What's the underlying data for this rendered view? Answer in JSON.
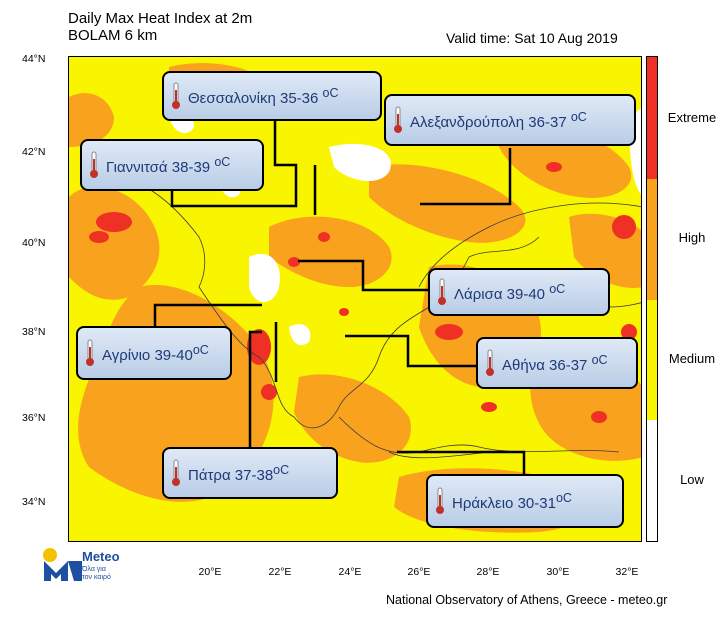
{
  "header": {
    "title_line1": "Daily Max Heat Index at 2m",
    "title_line2": "BOLAM 6 km",
    "valid_time": "Valid time: Sat 10 Aug 2019"
  },
  "axes": {
    "lat_ticks": [
      "44°N",
      "42°N",
      "40°N",
      "38°N",
      "36°N",
      "34°N"
    ],
    "lon_ticks": [
      "20°E",
      "22°E",
      "24°E",
      "26°E",
      "28°E",
      "30°E",
      "32°E"
    ]
  },
  "legend": {
    "categories": [
      {
        "label": "Extreme",
        "color": "#ee3124"
      },
      {
        "label": "High",
        "color": "#f8a21e"
      },
      {
        "label": "Medium",
        "color": "#f9f400"
      },
      {
        "label": "Low",
        "color": "#ffffff"
      }
    ]
  },
  "callouts": [
    {
      "id": "thessaloniki",
      "text": "Θεσσαλονίκη 35-36",
      "unit": "οC"
    },
    {
      "id": "alexandroupoli",
      "text": "Αλεξανδρούπολη 36-37",
      "unit": "οC"
    },
    {
      "id": "giannitsa",
      "text": "Γιαννιτσά 38-39",
      "unit": "οC"
    },
    {
      "id": "larisa",
      "text": "Λάρισα 39-40",
      "unit": "οC"
    },
    {
      "id": "agrinio",
      "text": "Αγρίνιο 39-40",
      "unit": "οC"
    },
    {
      "id": "athina",
      "text": "Αθήνα 36-37",
      "unit": "οC"
    },
    {
      "id": "patra",
      "text": "Πάτρα 37-38",
      "unit": "οC"
    },
    {
      "id": "irakleio",
      "text": "Ηράκλειο 30-31",
      "unit": "οC"
    }
  ],
  "logo": {
    "brand": "Meteo",
    "tagline_1": "Όλα για",
    "tagline_2": "τον καιρό"
  },
  "footer": {
    "credit": "National Observatory of Athens, Greece - meteo.gr"
  }
}
